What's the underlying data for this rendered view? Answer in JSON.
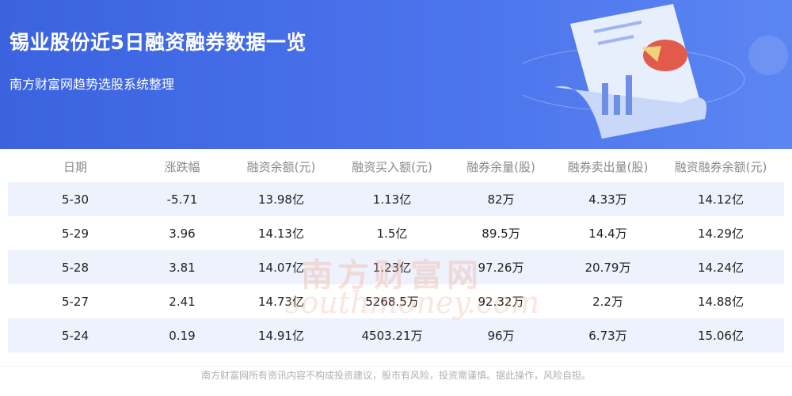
{
  "header": {
    "title": "锡业股份近5日融资融券数据一览",
    "subtitle": "南方财富网趋势选股系统整理"
  },
  "table": {
    "columns": [
      "日期",
      "涨跌幅",
      "融资余额(元)",
      "融资买入额(元)",
      "融券余量(股)",
      "融券卖出量(股)",
      "融资融券余额(元)"
    ],
    "rows": [
      [
        "5-30",
        "-5.71",
        "13.98亿",
        "1.13亿",
        "82万",
        "4.33万",
        "14.12亿"
      ],
      [
        "5-29",
        "3.96",
        "14.13亿",
        "1.5亿",
        "89.5万",
        "14.4万",
        "14.29亿"
      ],
      [
        "5-28",
        "3.81",
        "14.07亿",
        "1.23亿",
        "97.26万",
        "20.79万",
        "14.24亿"
      ],
      [
        "5-27",
        "2.41",
        "14.73亿",
        "5268.5万",
        "92.32万",
        "2.2万",
        "14.88亿"
      ],
      [
        "5-24",
        "0.19",
        "14.91亿",
        "4503.21万",
        "96万",
        "6.73万",
        "15.06亿"
      ]
    ]
  },
  "watermark": {
    "cn": "南方财富网",
    "en": "southmoney.com"
  },
  "footer": "南方财富网所有资讯内容不构成投资建议，股市有风险，投资需谨慎。据此操作，风险自担。",
  "colors": {
    "banner": "#4a73ec",
    "band": "#edf2fc"
  }
}
